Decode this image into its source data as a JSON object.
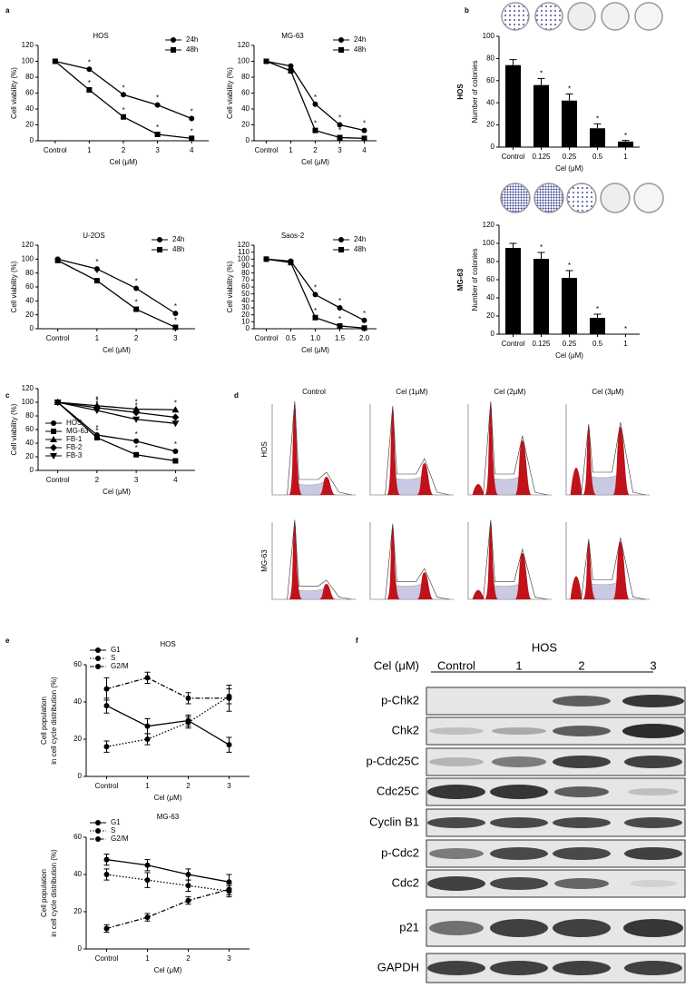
{
  "panel_labels": [
    "a",
    "b",
    "c",
    "d",
    "e",
    "f"
  ],
  "chart_data": [
    {
      "type": "line",
      "title": "HOS",
      "categories": [
        "Control",
        "1",
        "2",
        "3",
        "4"
      ],
      "xlabel": "Cel (μM)",
      "ylabel": "Cell viability (%)",
      "ylim": [
        0,
        120
      ],
      "yticks": [
        0,
        20,
        40,
        60,
        80,
        100,
        120
      ],
      "legend": "upper right",
      "series": [
        {
          "name": "24h",
          "color": "#000000",
          "marker": "circle",
          "dash": "solid",
          "values": [
            100,
            90,
            58,
            45,
            28
          ],
          "significance": [
            null,
            "*",
            "*",
            "*",
            "*"
          ]
        },
        {
          "name": "48h",
          "color": "#000000",
          "marker": "square",
          "dash": "solid",
          "values": [
            100,
            64,
            30,
            8,
            3
          ],
          "significance": [
            null,
            "*",
            "*",
            "*",
            "*"
          ]
        }
      ]
    },
    {
      "type": "line",
      "title": "MG-63",
      "categories": [
        "Control",
        "1",
        "2",
        "3",
        "4"
      ],
      "xlabel": "Cel (μM)",
      "ylabel": "Cell viability (%)",
      "ylim": [
        0,
        120
      ],
      "yticks": [
        0,
        20,
        40,
        60,
        80,
        100,
        120
      ],
      "legend": "upper right",
      "series": [
        {
          "name": "24h",
          "color": "#000000",
          "marker": "circle",
          "dash": "solid",
          "values": [
            100,
            94,
            46,
            20,
            13
          ],
          "significance": [
            null,
            null,
            "*",
            "*",
            "*"
          ]
        },
        {
          "name": "48h",
          "color": "#000000",
          "marker": "square",
          "dash": "solid",
          "values": [
            100,
            88,
            13,
            4,
            3
          ],
          "significance": [
            null,
            null,
            "*",
            "*",
            "*"
          ]
        }
      ]
    },
    {
      "type": "line",
      "title": "U-2OS",
      "categories": [
        "Control",
        "1",
        "2",
        "3"
      ],
      "xlabel": "Cel (μM)",
      "ylabel": "Cell viability (%)",
      "ylim": [
        0,
        120
      ],
      "yticks": [
        0,
        20,
        40,
        60,
        80,
        100,
        120
      ],
      "legend": "upper right",
      "series": [
        {
          "name": "24h",
          "color": "#000000",
          "marker": "circle",
          "dash": "solid",
          "values": [
            100,
            86,
            58,
            22
          ],
          "significance": [
            null,
            "*",
            "*",
            "*"
          ]
        },
        {
          "name": "48h",
          "color": "#000000",
          "marker": "square",
          "dash": "solid",
          "values": [
            98,
            69,
            28,
            2
          ],
          "significance": [
            null,
            "*",
            "*",
            "*"
          ]
        }
      ]
    },
    {
      "type": "line",
      "title": "Saos-2",
      "categories": [
        "Control",
        "0.5",
        "1.0",
        "1.5",
        "2.0"
      ],
      "xlabel": "Cel (μM)",
      "ylabel": "Cell viability (%)",
      "ylim": [
        0,
        120
      ],
      "yticks": [
        0,
        10,
        20,
        30,
        40,
        50,
        60,
        70,
        80,
        90,
        100,
        110,
        120
      ],
      "legend": "upper right",
      "series": [
        {
          "name": "24h",
          "color": "#000000",
          "marker": "circle",
          "dash": "solid",
          "values": [
            100,
            97,
            49,
            30,
            12
          ],
          "significance": [
            null,
            null,
            "*",
            "*",
            "*"
          ]
        },
        {
          "name": "48h",
          "color": "#000000",
          "marker": "square",
          "dash": "solid",
          "values": [
            100,
            95,
            16,
            4,
            1
          ],
          "significance": [
            null,
            null,
            "*",
            "*",
            "*"
          ]
        }
      ]
    },
    {
      "type": "bar",
      "side_label": "HOS",
      "categories": [
        "Control",
        "0.125",
        "0.25",
        "0.5",
        "1"
      ],
      "xlabel": "Cel (μM)",
      "ylabel": "Number of colonies",
      "ylim": [
        0,
        100
      ],
      "yticks": [
        0,
        20,
        40,
        60,
        80,
        100
      ],
      "color": "#000000",
      "values": [
        74,
        56,
        42,
        17,
        5
      ],
      "errors": [
        5,
        6,
        6,
        4,
        1
      ],
      "significance": [
        null,
        "*",
        "*",
        "*",
        "*"
      ]
    },
    {
      "type": "bar",
      "side_label": "MG-63",
      "categories": [
        "Control",
        "0.125",
        "0.25",
        "0.5",
        "1"
      ],
      "xlabel": "Cel (μM)",
      "ylabel": "Number of colonies",
      "ylim": [
        0,
        120
      ],
      "yticks": [
        0,
        20,
        40,
        60,
        80,
        100,
        120
      ],
      "color": "#000000",
      "values": [
        95,
        83,
        62,
        18,
        0
      ],
      "errors": [
        5,
        7,
        8,
        4,
        0
      ],
      "significance": [
        null,
        "*",
        "*",
        "*",
        "*"
      ]
    },
    {
      "type": "line",
      "categories": [
        "Control",
        "2",
        "3",
        "4"
      ],
      "xlabel": "Cel (μM)",
      "ylabel": "Cell viability (%)",
      "ylim": [
        0,
        120
      ],
      "yticks": [
        0,
        20,
        40,
        60,
        80,
        100,
        120
      ],
      "legend": "lower left",
      "series": [
        {
          "name": "HOS",
          "color": "#000000",
          "marker": "circle",
          "dash": "solid",
          "values": [
            100,
            52,
            43,
            28
          ],
          "significance": [
            null,
            "*",
            "*",
            "*"
          ]
        },
        {
          "name": "MG-63",
          "color": "#000000",
          "marker": "square",
          "dash": "solid",
          "values": [
            100,
            48,
            23,
            14
          ],
          "significance": [
            null,
            "*",
            "*",
            "*"
          ]
        },
        {
          "name": "FB-1",
          "color": "#000000",
          "marker": "triangle",
          "dash": "solid",
          "values": [
            100,
            95,
            90,
            89
          ],
          "significance": [
            null,
            "*",
            "*",
            "*"
          ]
        },
        {
          "name": "FB-2",
          "color": "#000000",
          "marker": "diamond",
          "dash": "solid",
          "values": [
            100,
            92,
            85,
            78
          ],
          "significance": [
            null,
            "*",
            "*",
            "*"
          ]
        },
        {
          "name": "FB-3",
          "color": "#000000",
          "marker": "tridown",
          "dash": "solid",
          "values": [
            100,
            88,
            75,
            69
          ],
          "significance": [
            null,
            "*",
            "*",
            "*"
          ]
        }
      ]
    },
    {
      "type": "line",
      "title": "HOS",
      "categories": [
        "Control",
        "1",
        "2",
        "3"
      ],
      "xlabel": "Cel (μM)",
      "ylabel": [
        "Cell population",
        "in cell cycle distribution (%)"
      ],
      "ylim": [
        0,
        60
      ],
      "yticks": [
        0,
        20,
        40,
        60
      ],
      "legend": "upper left",
      "series": [
        {
          "name": "G1",
          "color": "#000000",
          "marker": "circle",
          "dash": "solid",
          "values": [
            38,
            27,
            30,
            17
          ],
          "errors": [
            4,
            4,
            3,
            4
          ]
        },
        {
          "name": "S",
          "color": "#000000",
          "marker": "circle",
          "dash": "dotted",
          "values": [
            16,
            20,
            29,
            43
          ],
          "errors": [
            3,
            3,
            3,
            4
          ]
        },
        {
          "name": "G2/M",
          "color": "#000000",
          "marker": "circle",
          "dash": "dashdot",
          "values": [
            47,
            53,
            42,
            42
          ],
          "errors": [
            6,
            3,
            3,
            7
          ]
        }
      ]
    },
    {
      "type": "line",
      "title": "MG-63",
      "categories": [
        "Control",
        "1",
        "2",
        "3"
      ],
      "xlabel": "Cel (μM)",
      "ylabel": [
        "Cell population",
        "in cell cycle distribution (%)"
      ],
      "ylim": [
        0,
        60
      ],
      "yticks": [
        0,
        20,
        40,
        60
      ],
      "legend": "upper left",
      "series": [
        {
          "name": "G1",
          "color": "#000000",
          "marker": "circle",
          "dash": "solid",
          "values": [
            48,
            45,
            40,
            36
          ],
          "errors": [
            3,
            3,
            3,
            4
          ]
        },
        {
          "name": "S",
          "color": "#000000",
          "marker": "circle",
          "dash": "dotted",
          "values": [
            40,
            37,
            34,
            31
          ],
          "errors": [
            3,
            4,
            3,
            3
          ]
        },
        {
          "name": "G2/M",
          "color": "#000000",
          "marker": "circle",
          "dash": "dashdot",
          "values": [
            11,
            17,
            26,
            32
          ],
          "errors": [
            2,
            2,
            2,
            3
          ]
        }
      ]
    }
  ],
  "flow": {
    "columns": [
      "Control",
      "Cel (1μM)",
      "Cel (2μM)",
      "Cel (3μM)"
    ],
    "rows": [
      "HOS",
      "MG-63"
    ]
  },
  "blot": {
    "title": "HOS",
    "row_header": "Cel (μM)",
    "lanes": [
      "Control",
      "1",
      "2",
      "3"
    ],
    "proteins": [
      "p-Chk2",
      "Chk2",
      "p-Cdc25C",
      "Cdc25C",
      "Cyclin B1",
      "p-Cdc2",
      "Cdc2",
      "p21",
      "GAPDH"
    ]
  }
}
